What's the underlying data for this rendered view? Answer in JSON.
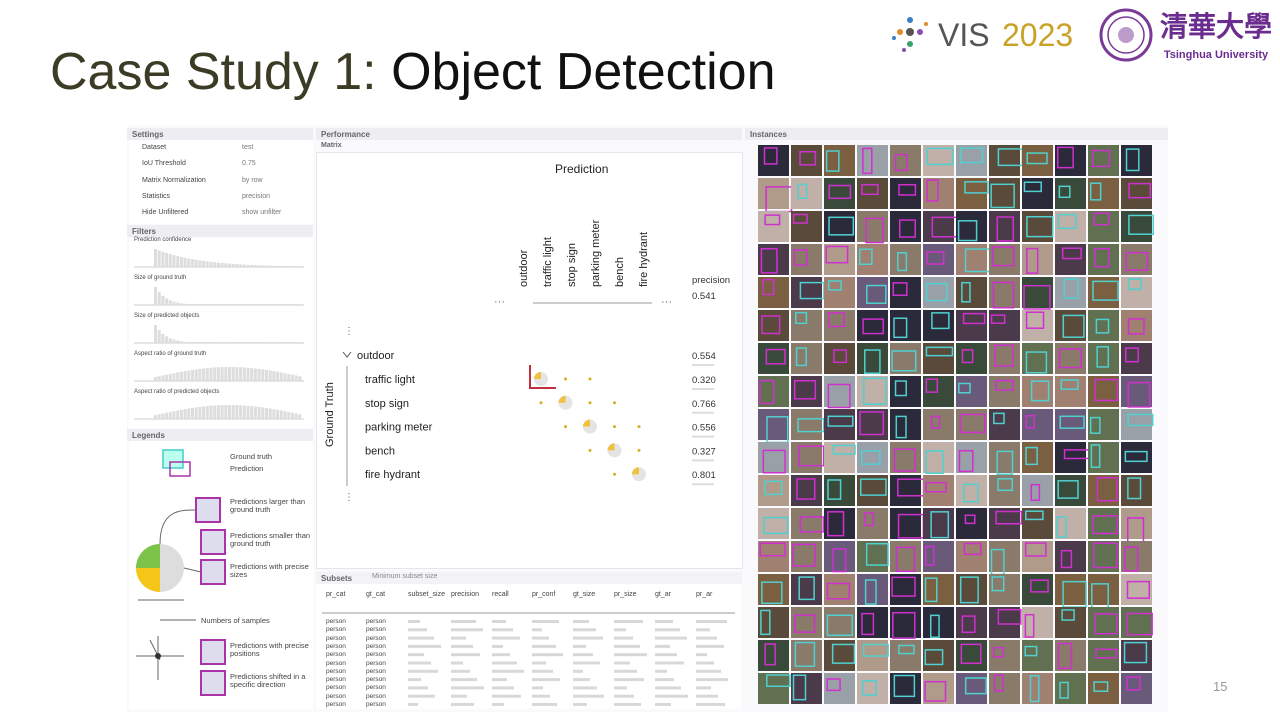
{
  "slide": {
    "title_prefix": "Case Study 1:",
    "title_main": "Object Detection",
    "logo_vis": "VIS",
    "logo_year": "2023",
    "university_cn": "清華大學",
    "university_en": "Tsinghua University",
    "page_number": "15"
  },
  "settings": {
    "title": "Settings",
    "rows": [
      [
        "Dataset",
        "test"
      ],
      [
        "IoU Threshold",
        "0.75"
      ],
      [
        "Matrix Normalization",
        "by row"
      ],
      [
        "Statistics",
        "precision"
      ],
      [
        "Hide Unfiltered",
        "show unfilter"
      ]
    ]
  },
  "filters": {
    "title": "Filters",
    "items": [
      "Prediction confidence",
      "Size of ground truth",
      "Size of predicted objects",
      "Aspect ratio of ground truth",
      "Aspect ratio of predicted objects"
    ]
  },
  "legends": {
    "title": "Legends",
    "items": [
      "Ground truth",
      "Prediction",
      "Predictions larger than ground truth",
      "Predictions smaller than ground truth",
      "Predictions with precise sizes",
      "Numbers of samples",
      "Predictions with precise positions",
      "Predictions shifted in a specific direction"
    ]
  },
  "performance": {
    "title": "Performance",
    "subtitle": "Matrix",
    "x_axis": "Prediction",
    "y_axis": "Ground Truth",
    "columns": [
      "outdoor",
      "traffic light",
      "stop sign",
      "parking meter",
      "bench",
      "fire hydrant"
    ],
    "stat_header": "precision",
    "overall": "0.541",
    "rows": [
      {
        "label": "outdoor",
        "value": "0.554"
      },
      {
        "label": "traffic light",
        "value": "0.320"
      },
      {
        "label": "stop sign",
        "value": "0.766"
      },
      {
        "label": "parking meter",
        "value": "0.556"
      },
      {
        "label": "bench",
        "value": "0.327"
      },
      {
        "label": "fire hydrant",
        "value": "0.801"
      }
    ]
  },
  "subsets": {
    "title": "Subsets",
    "min_label": "Minimum subset size",
    "headers": [
      "pr_cat",
      "gt_cat",
      "subset_size",
      "precision",
      "recall",
      "pr_conf",
      "gt_size",
      "pr_size",
      "gt_ar",
      "pr_ar"
    ],
    "rows": [
      [
        "person",
        "person"
      ],
      [
        "person",
        "person"
      ],
      [
        "person",
        "person"
      ],
      [
        "person",
        "person"
      ],
      [
        "person",
        "person"
      ],
      [
        "person",
        "person"
      ],
      [
        "person",
        "person"
      ],
      [
        "person",
        "person"
      ],
      [
        "person",
        "person"
      ],
      [
        "person",
        "person"
      ],
      [
        "person",
        "person"
      ]
    ]
  },
  "instances": {
    "title": "Instances"
  }
}
